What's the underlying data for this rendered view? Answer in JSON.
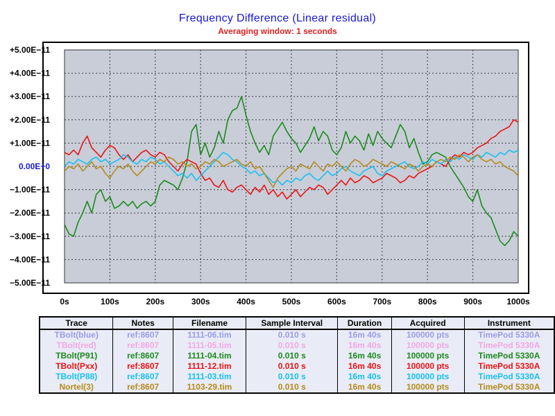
{
  "chart_data": {
    "type": "line",
    "title": "Frequency Difference  (Linear residual)",
    "subtitle": "Averaging window: 1 seconds",
    "xlim": [
      0,
      1000
    ],
    "ylim": [
      -5e-11,
      5e-11
    ],
    "x_ticks": [
      "0s",
      "100s",
      "200s",
      "300s",
      "400s",
      "500s",
      "600s",
      "700s",
      "800s",
      "900s",
      "1000s"
    ],
    "y_ticks": [
      "+5.00E−11",
      "+4.00E−11",
      "+3.00E−11",
      "+2.00E−11",
      "+1.00E−11",
      "0.00E+0",
      "−1.00E−11",
      "−2.00E−11",
      "−3.00E−11",
      "−4.00E−11",
      "−5.00E−11"
    ],
    "y_zero_color": "#1a1ad6",
    "plot_bg": "#c8cdd8",
    "grid": true,
    "series": [
      {
        "name": "TBolt(P91)",
        "color": "#1a8a1a",
        "x": [
          0,
          10,
          20,
          30,
          40,
          50,
          60,
          70,
          80,
          90,
          100,
          110,
          120,
          130,
          140,
          150,
          160,
          170,
          180,
          190,
          200,
          210,
          220,
          230,
          240,
          250,
          260,
          270,
          280,
          290,
          300,
          310,
          320,
          330,
          340,
          350,
          360,
          370,
          380,
          390,
          400,
          410,
          420,
          430,
          440,
          450,
          460,
          470,
          480,
          490,
          500,
          510,
          520,
          530,
          540,
          550,
          560,
          570,
          580,
          590,
          600,
          610,
          620,
          630,
          640,
          650,
          660,
          670,
          680,
          690,
          700,
          710,
          720,
          730,
          740,
          750,
          760,
          770,
          780,
          790,
          800,
          810,
          820,
          830,
          840,
          850,
          860,
          870,
          880,
          890,
          900,
          910,
          920,
          930,
          940,
          950,
          960,
          970,
          980,
          990,
          1000
        ],
        "y": [
          -2.5e-11,
          -2.9e-11,
          -3e-11,
          -2.4e-11,
          -2e-11,
          -1.5e-11,
          -2e-11,
          -1.2e-11,
          -1e-11,
          -1.5e-11,
          -1.3e-11,
          -1.8e-11,
          -1.7e-11,
          -1.5e-11,
          -1.7e-11,
          -1.5e-11,
          -1.8e-11,
          -1.6e-11,
          -1.5e-11,
          -1.7e-11,
          -1.5e-11,
          -8e-12,
          -6e-12,
          -7e-12,
          -8e-12,
          -1e-11,
          -5e-12,
          2e-12,
          1.5e-11,
          1.8e-11,
          5e-12,
          1e-11,
          4e-12,
          8e-12,
          1.5e-11,
          1e-11,
          2e-11,
          2.4e-11,
          2.5e-11,
          3e-11,
          2.2e-11,
          1.5e-11,
          1e-11,
          6e-12,
          9e-12,
          5e-12,
          1.3e-11,
          1.6e-11,
          1.9e-11,
          1.5e-11,
          1.2e-11,
          1e-11,
          6e-12,
          9e-12,
          1.2e-11,
          1.7e-11,
          1.1e-11,
          1.5e-11,
          1.3e-11,
          7e-12,
          5e-12,
          8e-12,
          1.5e-11,
          1e-11,
          1.3e-11,
          1.1e-11,
          7e-12,
          1.4e-11,
          9e-12,
          1.5e-11,
          1.2e-11,
          1e-11,
          8e-12,
          1.3e-11,
          1.8e-11,
          1.5e-11,
          8e-12,
          1.2e-11,
          6e-12,
          1e-12,
          2e-12,
          5e-12,
          6e-12,
          5e-12,
          4e-12,
          0.0,
          -3e-12,
          -6e-12,
          -9e-12,
          -1.3e-11,
          -1.5e-11,
          -1e-11,
          -1.7e-11,
          -2e-11,
          -2.2e-11,
          -2.7e-11,
          -3.2e-11,
          -3.4e-11,
          -3.2e-11,
          -2.8e-11,
          -3e-11
        ]
      },
      {
        "name": "TBolt(Pxx)",
        "color": "#ee1111",
        "x": [
          0,
          10,
          20,
          30,
          40,
          50,
          60,
          70,
          80,
          90,
          100,
          110,
          120,
          130,
          140,
          150,
          160,
          170,
          180,
          190,
          200,
          210,
          220,
          230,
          240,
          250,
          260,
          270,
          280,
          290,
          300,
          310,
          320,
          330,
          340,
          350,
          360,
          370,
          380,
          390,
          400,
          410,
          420,
          430,
          440,
          450,
          460,
          470,
          480,
          490,
          500,
          510,
          520,
          530,
          540,
          550,
          560,
          570,
          580,
          590,
          600,
          610,
          620,
          630,
          640,
          650,
          660,
          670,
          680,
          690,
          700,
          710,
          720,
          730,
          740,
          750,
          760,
          770,
          780,
          790,
          800,
          810,
          820,
          830,
          840,
          850,
          860,
          870,
          880,
          890,
          900,
          910,
          920,
          930,
          940,
          950,
          960,
          970,
          980,
          990,
          1000
        ],
        "y": [
          6e-12,
          5e-12,
          7e-12,
          5e-12,
          1e-11,
          1.3e-11,
          8e-12,
          6e-12,
          4e-12,
          7e-12,
          9e-12,
          8e-12,
          5e-12,
          3e-12,
          5e-12,
          2e-12,
          4e-12,
          6e-12,
          7e-12,
          5e-12,
          4e-12,
          6e-12,
          5e-12,
          2e-12,
          0.0,
          -2e-12,
          1e-12,
          3e-12,
          2e-12,
          1e-12,
          -3e-12,
          -6e-12,
          -5e-12,
          -8e-12,
          -9e-12,
          -6e-12,
          -1e-11,
          -1.1e-11,
          -9e-12,
          -8e-12,
          -1e-11,
          -1.2e-11,
          -9e-12,
          -1.1e-11,
          -8e-12,
          -1.2e-11,
          -1e-11,
          -1.3e-11,
          -1.1e-11,
          -1.4e-11,
          -1.2e-11,
          -1e-11,
          -1.3e-11,
          -1.1e-11,
          -9e-12,
          -1e-11,
          -8e-12,
          -9e-12,
          -1.2e-11,
          -1e-11,
          -8e-12,
          -6e-12,
          -8e-12,
          -5e-12,
          -7e-12,
          -6e-12,
          -4e-12,
          -5e-12,
          -7e-12,
          -6e-12,
          -5e-12,
          -3e-12,
          -4e-12,
          -5e-12,
          -7e-12,
          -6e-12,
          -4e-12,
          -5e-12,
          -3e-12,
          -2e-12,
          -1e-12,
          0.0,
          2e-12,
          1e-12,
          0.0,
          3e-12,
          5e-12,
          4e-12,
          6e-12,
          5e-12,
          6e-12,
          8e-12,
          9e-12,
          1e-11,
          1.2e-11,
          1.3e-11,
          1.5e-11,
          1.6e-11,
          1.7e-11,
          2e-11,
          1.9e-11
        ]
      },
      {
        "name": "TBolt(P88)",
        "color": "#18c0f0",
        "x": [
          0,
          10,
          20,
          30,
          40,
          50,
          60,
          70,
          80,
          90,
          100,
          110,
          120,
          130,
          140,
          150,
          160,
          170,
          180,
          190,
          200,
          210,
          220,
          230,
          240,
          250,
          260,
          270,
          280,
          290,
          300,
          310,
          320,
          330,
          340,
          350,
          360,
          370,
          380,
          390,
          400,
          410,
          420,
          430,
          440,
          450,
          460,
          470,
          480,
          490,
          500,
          510,
          520,
          530,
          540,
          550,
          560,
          570,
          580,
          590,
          600,
          610,
          620,
          630,
          640,
          650,
          660,
          670,
          680,
          690,
          700,
          710,
          720,
          730,
          740,
          750,
          760,
          770,
          780,
          790,
          800,
          810,
          820,
          830,
          840,
          850,
          860,
          870,
          880,
          890,
          900,
          910,
          920,
          930,
          940,
          950,
          960,
          970,
          980,
          990,
          1000
        ],
        "y": [
          0.0,
          2e-12,
          1e-12,
          3e-12,
          2e-12,
          1e-12,
          3e-12,
          4e-12,
          2e-12,
          3e-12,
          1e-12,
          2e-12,
          3e-12,
          5e-12,
          4e-12,
          2e-12,
          1e-12,
          3e-12,
          2e-12,
          4e-12,
          3e-12,
          1e-12,
          2e-12,
          0.0,
          -2e-12,
          -4e-12,
          -3e-12,
          -5e-12,
          -3e-12,
          -6e-12,
          -4e-12,
          -2e-12,
          0.0,
          2e-12,
          4e-12,
          6e-12,
          5e-12,
          3e-12,
          2e-12,
          0.0,
          -1e-12,
          -3e-12,
          -2e-12,
          -4e-12,
          -3e-12,
          -5e-12,
          -7e-12,
          -6e-12,
          -8e-12,
          -6e-12,
          -7e-12,
          -5e-12,
          -6e-12,
          -4e-12,
          -3e-12,
          -5e-12,
          -6e-12,
          -4e-12,
          -2e-12,
          -4e-12,
          -3e-12,
          -1e-12,
          0.0,
          -2e-12,
          -3e-12,
          -4e-12,
          -2e-12,
          -1e-12,
          0.0,
          -3e-12,
          -4e-12,
          -2e-12,
          -1e-12,
          0.0,
          1e-12,
          2e-12,
          0.0,
          -1e-12,
          0.0,
          2e-12,
          1e-12,
          3e-12,
          2e-12,
          1e-12,
          3e-12,
          2e-12,
          4e-12,
          3e-12,
          5e-12,
          4e-12,
          3e-12,
          5e-12,
          4e-12,
          6e-12,
          5e-12,
          4e-12,
          6e-12,
          5e-12,
          7e-12,
          6e-12,
          7e-12
        ]
      },
      {
        "name": "Nortel(3)",
        "color": "#b58a1a",
        "x": [
          0,
          10,
          20,
          30,
          40,
          50,
          60,
          70,
          80,
          90,
          100,
          110,
          120,
          130,
          140,
          150,
          160,
          170,
          180,
          190,
          200,
          210,
          220,
          230,
          240,
          250,
          260,
          270,
          280,
          290,
          300,
          310,
          320,
          330,
          340,
          350,
          360,
          370,
          380,
          390,
          400,
          410,
          420,
          430,
          440,
          450,
          460,
          470,
          480,
          490,
          500,
          510,
          520,
          530,
          540,
          550,
          560,
          570,
          580,
          590,
          600,
          610,
          620,
          630,
          640,
          650,
          660,
          670,
          680,
          690,
          700,
          710,
          720,
          730,
          740,
          750,
          760,
          770,
          780,
          790,
          800,
          810,
          820,
          830,
          840,
          850,
          860,
          870,
          880,
          890,
          900,
          910,
          920,
          930,
          940,
          950,
          960,
          970,
          980,
          990,
          1000
        ],
        "y": [
          -2e-12,
          0.0,
          -1e-12,
          1e-12,
          -2e-12,
          0.0,
          2e-12,
          -1e-12,
          0.0,
          -3e-12,
          -5e-12,
          -2e-12,
          0.0,
          -1e-12,
          1e-12,
          -2e-12,
          -4e-12,
          -2e-12,
          0.0,
          2e-12,
          1e-12,
          3e-12,
          2e-12,
          4e-12,
          3e-12,
          1e-12,
          2e-12,
          0.0,
          1e-12,
          -1e-12,
          0.0,
          2e-12,
          1e-12,
          3e-12,
          2e-12,
          0.0,
          1e-12,
          2e-12,
          3e-12,
          1e-12,
          0.0,
          2e-12,
          -1e-12,
          0.0,
          -3e-12,
          -6e-12,
          -9e-12,
          -5e-12,
          -3e-12,
          -1e-12,
          0.0,
          -2e-12,
          1e-12,
          0.0,
          -1e-12,
          2e-12,
          0.0,
          -2e-12,
          1e-12,
          0.0,
          2e-12,
          0.0,
          -2e-12,
          1e-12,
          3e-12,
          2e-12,
          0.0,
          1e-12,
          3e-12,
          2e-12,
          1e-12,
          0.0,
          2e-12,
          1e-12,
          0.0,
          -1e-12,
          1e-12,
          0.0,
          -2e-12,
          0.0,
          1e-12,
          0.0,
          2e-12,
          3e-12,
          2e-12,
          4e-12,
          3e-12,
          5e-12,
          4e-12,
          2e-12,
          4e-12,
          5e-12,
          3e-12,
          2e-12,
          3e-12,
          1e-12,
          2e-12,
          0.0,
          -1e-12,
          -2e-12,
          -4e-12
        ]
      }
    ]
  },
  "legend_table": {
    "headers": [
      "Trace",
      "Notes",
      "Filename",
      "Sample Interval",
      "Duration",
      "Acquired",
      "Instrument"
    ],
    "rows": [
      {
        "color": "#9b9bea",
        "cells": [
          "TBolt(blue)",
          "ref:8607",
          "1111-06.tim",
          "0.010 s",
          "16m 40s",
          "100000 pts",
          "TimePod 5330A"
        ]
      },
      {
        "color": "#f4a6e6",
        "cells": [
          "TBolt(red)",
          "ref:8607",
          "1111-05.tim",
          "0.010 s",
          "16m 40s",
          "100000 pts",
          "TimePod 5330A"
        ]
      },
      {
        "color": "#1a8a1a",
        "cells": [
          "TBolt(P91)",
          "ref:8607",
          "1111-04.tim",
          "0.010 s",
          "16m 40s",
          "100000 pts",
          "TimePod 5330A"
        ]
      },
      {
        "color": "#ee1111",
        "cells": [
          "TBolt(Pxx)",
          "ref:8607",
          "1111-12.tim",
          "0.010 s",
          "16m 40s",
          "100000 pts",
          "TimePod 5330A"
        ]
      },
      {
        "color": "#18c0f0",
        "cells": [
          "TBolt(P88)",
          "ref:8607",
          "1111-03.tim",
          "0.010 s",
          "16m 40s",
          "100000 pts",
          "TimePod 5330A"
        ]
      },
      {
        "color": "#b58a1a",
        "cells": [
          "Nortel(3)",
          "ref:8607",
          "1103-29.tim",
          "0.010 s",
          "16m 40s",
          "100000 pts",
          "TimePod 5330A"
        ]
      }
    ]
  }
}
